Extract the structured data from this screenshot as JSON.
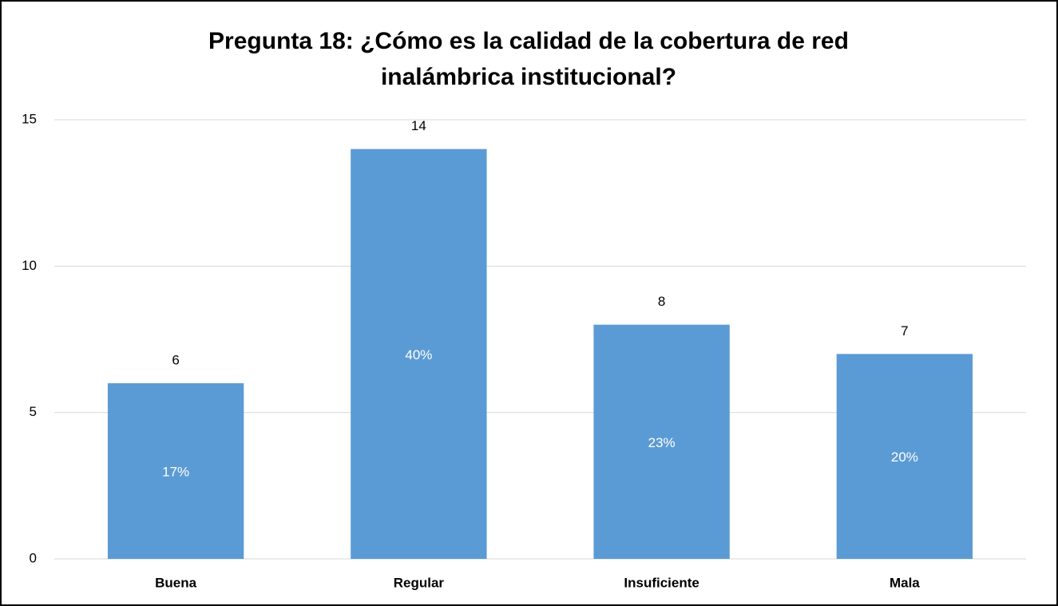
{
  "chart_data": {
    "type": "bar",
    "title": [
      "Pregunta 18: ¿Cómo es la calidad de la cobertura de red",
      "inalámbrica institucional?"
    ],
    "categories": [
      "Buena",
      "Regular",
      "Insuficiente",
      "Mala"
    ],
    "values": [
      6,
      14,
      8,
      7
    ],
    "inner_labels": [
      "17%",
      "40%",
      "23%",
      "20%"
    ],
    "color": "#5b9bd5",
    "ylim": [
      0,
      15
    ],
    "yticks": [
      0,
      5,
      10,
      15
    ],
    "grid": true
  }
}
